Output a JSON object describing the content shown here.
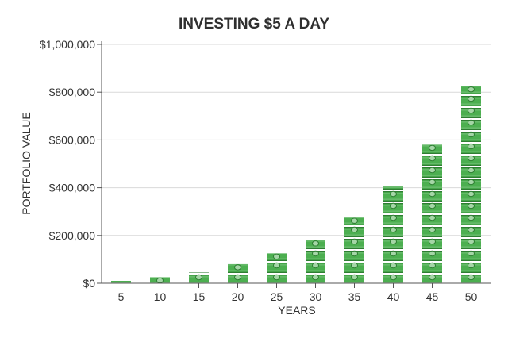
{
  "chart_data": {
    "type": "bar",
    "title": "INVESTING $5 A DAY",
    "xlabel": "YEARS",
    "ylabel": "PORTFOLIO VALUE",
    "categories": [
      "5",
      "10",
      "15",
      "20",
      "25",
      "30",
      "35",
      "40",
      "45",
      "50"
    ],
    "values": [
      10000,
      25000,
      45000,
      80000,
      125000,
      180000,
      275000,
      405000,
      580000,
      825000
    ],
    "ylim": [
      0,
      1000000
    ],
    "yticks": [
      0,
      200000,
      400000,
      600000,
      800000,
      1000000
    ],
    "ytick_labels": [
      "$0",
      "$200,000",
      "$400,000",
      "$600,000",
      "$800,000",
      "$1,000,000"
    ],
    "grid": true,
    "bar_style": "stacked dollar bills",
    "colors": {
      "bill_fill": "#4caf50",
      "bill_dark": "#2e7d32",
      "bill_light": "#a5d6a7",
      "text": "#333333",
      "grid": "#d9d9d9"
    }
  }
}
